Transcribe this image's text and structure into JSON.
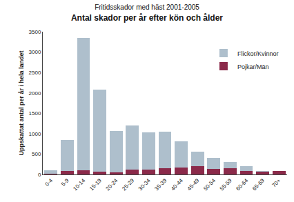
{
  "chart_data": {
    "type": "bar",
    "subtitle": "Fritidsskador med häst 2001-2005",
    "title": "Antal skador per år efter kön och ålder",
    "y_label": "Uppskattat antal per år i hela landet",
    "categories": [
      "0-4",
      "5-9",
      "10-14",
      "15-19",
      "20-24",
      "25-29",
      "30-34",
      "35-39",
      "40-44",
      "45-49",
      "50-54",
      "55-59",
      "60-64",
      "65-69",
      "70+"
    ],
    "series": [
      {
        "name": "Pojkar/Män",
        "color": "#8b2a4a",
        "values": [
          20,
          90,
          100,
          70,
          50,
          110,
          120,
          160,
          170,
          200,
          130,
          160,
          80,
          70,
          80
        ]
      },
      {
        "name": "Flickor/Kvinnor",
        "color": "#aebfcc",
        "values": [
          80,
          760,
          3250,
          2010,
          1020,
          1090,
          910,
          890,
          650,
          360,
          270,
          140,
          120,
          10,
          0
        ]
      }
    ],
    "stacked": true,
    "ylim": [
      0,
      3500
    ],
    "yticks": [
      0,
      500,
      1000,
      1500,
      2000,
      2500,
      3000,
      3500
    ],
    "grid": false,
    "legend": "upper right"
  }
}
